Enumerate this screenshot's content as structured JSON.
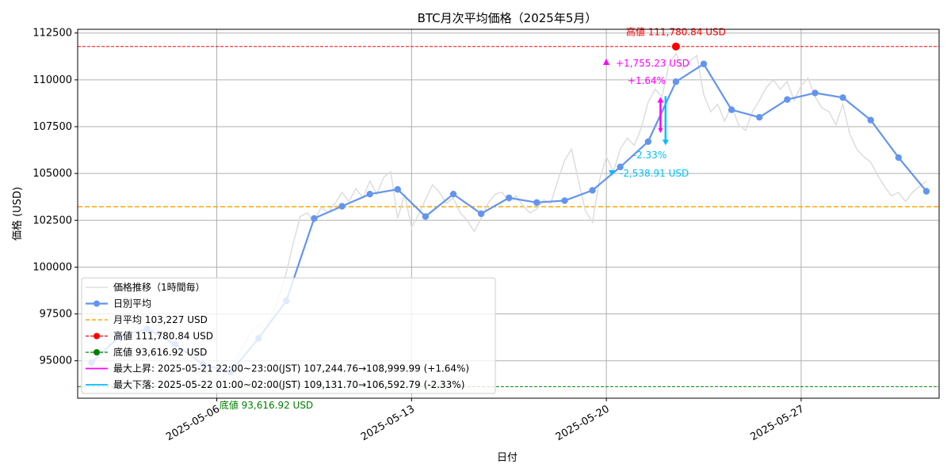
{
  "chart_data": {
    "type": "line",
    "title": "BTC月次平均価格（2025年5月）",
    "xlabel": "日付",
    "ylabel": "価格 (USD)",
    "x_range": [
      "2025-05-01T00:00",
      "2025-05-31T23:00"
    ],
    "ylim": [
      93000,
      112700
    ],
    "yticks": [
      95000,
      97500,
      100000,
      102500,
      105000,
      107500,
      110000,
      112500
    ],
    "xticks": [
      "2025-05-06",
      "2025-05-13",
      "2025-05-20",
      "2025-05-27"
    ],
    "grid": true,
    "legend_position": "lower-left",
    "colors": {
      "hourly": "#dddddd",
      "daily": "#6495ed",
      "mean": "#ffa500",
      "high": "#ff0000",
      "low": "#008000",
      "max_rise": "#ff00ff",
      "max_fall": "#00bfff"
    },
    "series": [
      {
        "name": "価格推移（1時間毎）",
        "kind": "hourly",
        "points": [
          [
            "2025-05-02T12:00",
            94900
          ],
          [
            "2025-05-02T18:00",
            95800
          ],
          [
            "2025-05-03T00:00",
            96300
          ],
          [
            "2025-05-03T06:00",
            96500
          ],
          [
            "2025-05-03T12:00",
            96100
          ],
          [
            "2025-05-03T18:00",
            96800
          ],
          [
            "2025-05-04T00:00",
            96400
          ],
          [
            "2025-05-04T06:00",
            96000
          ],
          [
            "2025-05-04T12:00",
            95800
          ],
          [
            "2025-05-04T18:00",
            95300
          ],
          [
            "2025-05-05T00:00",
            94700
          ],
          [
            "2025-05-05T06:00",
            94300
          ],
          [
            "2025-05-05T12:00",
            94500
          ],
          [
            "2025-05-05T18:00",
            94100
          ],
          [
            "2025-05-06T00:00",
            93900
          ],
          [
            "2025-05-06T06:00",
            94200
          ],
          [
            "2025-05-06T12:00",
            94800
          ],
          [
            "2025-05-06T18:00",
            95200
          ],
          [
            "2025-05-07T00:00",
            95900
          ],
          [
            "2025-05-07T06:00",
            96600
          ],
          [
            "2025-05-07T12:00",
            96900
          ],
          [
            "2025-05-07T18:00",
            96700
          ],
          [
            "2025-05-08T00:00",
            97400
          ],
          [
            "2025-05-08T06:00",
            98500
          ],
          [
            "2025-05-08T12:00",
            99700
          ],
          [
            "2025-05-08T18:00",
            101300
          ],
          [
            "2025-05-09T00:00",
            102700
          ],
          [
            "2025-05-09T06:00",
            102900
          ],
          [
            "2025-05-09T12:00",
            102400
          ],
          [
            "2025-05-09T18:00",
            103200
          ],
          [
            "2025-05-10T00:00",
            102900
          ],
          [
            "2025-05-10T06:00",
            103400
          ],
          [
            "2025-05-10T12:00",
            104000
          ],
          [
            "2025-05-10T18:00",
            103500
          ],
          [
            "2025-05-11T00:00",
            104200
          ],
          [
            "2025-05-11T06:00",
            103700
          ],
          [
            "2025-05-11T12:00",
            104600
          ],
          [
            "2025-05-11T18:00",
            103900
          ],
          [
            "2025-05-12T00:00",
            104800
          ],
          [
            "2025-05-12T06:00",
            105100
          ],
          [
            "2025-05-12T12:00",
            102600
          ],
          [
            "2025-05-12T18:00",
            103900
          ],
          [
            "2025-05-13T00:00",
            102100
          ],
          [
            "2025-05-13T06:00",
            102800
          ],
          [
            "2025-05-13T12:00",
            103600
          ],
          [
            "2025-05-13T18:00",
            104400
          ],
          [
            "2025-05-14T00:00",
            104000
          ],
          [
            "2025-05-14T06:00",
            103400
          ],
          [
            "2025-05-14T12:00",
            103700
          ],
          [
            "2025-05-14T18:00",
            102900
          ],
          [
            "2025-05-15T00:00",
            102500
          ],
          [
            "2025-05-15T06:00",
            101900
          ],
          [
            "2025-05-15T12:00",
            102600
          ],
          [
            "2025-05-15T18:00",
            103400
          ],
          [
            "2025-05-16T00:00",
            103900
          ],
          [
            "2025-05-16T06:00",
            104000
          ],
          [
            "2025-05-16T12:00",
            103500
          ],
          [
            "2025-05-16T18:00",
            103800
          ],
          [
            "2025-05-17T00:00",
            103300
          ],
          [
            "2025-05-17T06:00",
            102900
          ],
          [
            "2025-05-17T12:00",
            103100
          ],
          [
            "2025-05-17T18:00",
            103600
          ],
          [
            "2025-05-18T00:00",
            103400
          ],
          [
            "2025-05-18T06:00",
            104600
          ],
          [
            "2025-05-18T12:00",
            105700
          ],
          [
            "2025-05-18T18:00",
            106300
          ],
          [
            "2025-05-19T00:00",
            104600
          ],
          [
            "2025-05-19T06:00",
            103000
          ],
          [
            "2025-05-19T12:00",
            102400
          ],
          [
            "2025-05-19T18:00",
            104600
          ],
          [
            "2025-05-20T00:00",
            105900
          ],
          [
            "2025-05-20T06:00",
            105100
          ],
          [
            "2025-05-20T12:00",
            106300
          ],
          [
            "2025-05-20T18:00",
            106900
          ],
          [
            "2025-05-21T00:00",
            106500
          ],
          [
            "2025-05-21T06:00",
            107400
          ],
          [
            "2025-05-21T12:00",
            108800
          ],
          [
            "2025-05-21T18:00",
            109500
          ],
          [
            "2025-05-22T00:00",
            109100
          ],
          [
            "2025-05-22T06:00",
            110800
          ],
          [
            "2025-05-22T12:00",
            111400
          ],
          [
            "2025-05-22T18:00",
            110600
          ],
          [
            "2025-05-23T00:00",
            111000
          ],
          [
            "2025-05-23T06:00",
            111300
          ],
          [
            "2025-05-23T12:00",
            109200
          ],
          [
            "2025-05-23T18:00",
            108300
          ],
          [
            "2025-05-24T00:00",
            108700
          ],
          [
            "2025-05-24T06:00",
            107800
          ],
          [
            "2025-05-24T12:00",
            108600
          ],
          [
            "2025-05-24T18:00",
            107600
          ],
          [
            "2025-05-25T00:00",
            107300
          ],
          [
            "2025-05-25T06:00",
            108300
          ],
          [
            "2025-05-25T12:00",
            108900
          ],
          [
            "2025-05-25T18:00",
            109600
          ],
          [
            "2025-05-26T00:00",
            110000
          ],
          [
            "2025-05-26T06:00",
            109500
          ],
          [
            "2025-05-26T12:00",
            109900
          ],
          [
            "2025-05-26T18:00",
            108900
          ],
          [
            "2025-05-27T00:00",
            109700
          ],
          [
            "2025-05-27T06:00",
            110100
          ],
          [
            "2025-05-27T12:00",
            109100
          ],
          [
            "2025-05-27T18:00",
            108500
          ],
          [
            "2025-05-28T00:00",
            108300
          ],
          [
            "2025-05-28T06:00",
            107600
          ],
          [
            "2025-05-28T12:00",
            108700
          ],
          [
            "2025-05-28T18:00",
            107100
          ],
          [
            "2025-05-29T00:00",
            106300
          ],
          [
            "2025-05-29T06:00",
            105900
          ],
          [
            "2025-05-29T12:00",
            105600
          ],
          [
            "2025-05-29T18:00",
            104900
          ],
          [
            "2025-05-30T00:00",
            104300
          ],
          [
            "2025-05-30T06:00",
            103800
          ],
          [
            "2025-05-30T12:00",
            104000
          ],
          [
            "2025-05-30T18:00",
            103500
          ],
          [
            "2025-05-31T00:00",
            104000
          ],
          [
            "2025-05-31T12:00",
            104600
          ]
        ]
      },
      {
        "name": "日別平均",
        "kind": "daily",
        "points": [
          [
            "2025-05-01T12:00",
            94900
          ],
          [
            "2025-05-02T12:00",
            96300
          ],
          [
            "2025-05-03T12:00",
            96700
          ],
          [
            "2025-05-04T12:00",
            95900
          ],
          [
            "2025-05-05T12:00",
            94800
          ],
          [
            "2025-05-06T12:00",
            94400
          ],
          [
            "2025-05-07T12:00",
            96200
          ],
          [
            "2025-05-08T12:00",
            98200
          ],
          [
            "2025-05-09T12:00",
            102600
          ],
          [
            "2025-05-10T12:00",
            103250
          ],
          [
            "2025-05-11T12:00",
            103900
          ],
          [
            "2025-05-12T12:00",
            104150
          ],
          [
            "2025-05-13T12:00",
            102700
          ],
          [
            "2025-05-14T12:00",
            103900
          ],
          [
            "2025-05-15T12:00",
            102850
          ],
          [
            "2025-05-16T12:00",
            103700
          ],
          [
            "2025-05-17T12:00",
            103450
          ],
          [
            "2025-05-18T12:00",
            103550
          ],
          [
            "2025-05-19T12:00",
            104100
          ],
          [
            "2025-05-20T12:00",
            105350
          ],
          [
            "2025-05-21T12:00",
            106700
          ],
          [
            "2025-05-22T12:00",
            109900
          ],
          [
            "2025-05-23T12:00",
            110850
          ],
          [
            "2025-05-24T12:00",
            108400
          ],
          [
            "2025-05-25T12:00",
            108000
          ],
          [
            "2025-05-26T12:00",
            108950
          ],
          [
            "2025-05-27T12:00",
            109300
          ],
          [
            "2025-05-28T12:00",
            109050
          ],
          [
            "2025-05-29T12:00",
            107850
          ],
          [
            "2025-05-30T12:00",
            105850
          ],
          [
            "2025-05-31T12:00",
            104050
          ]
        ]
      }
    ],
    "reference_lines": {
      "mean": {
        "value": 103227,
        "legend": "月平均 103,227 USD"
      },
      "high": {
        "value": 111780.84,
        "time": "2025-05-22T12:00",
        "legend": "高値 111,780.84 USD",
        "label": "高値 111,780.84 USD"
      },
      "low": {
        "value": 93616.92,
        "legend": "底値 93,616.92 USD",
        "label": "底値 93,616.92 USD"
      }
    },
    "max_rise": {
      "legend": "最大上昇: 2025-05-21 22:00~23:00(JST) 107,244.76→108,999.99 (+1.64%)",
      "from": [
        "2025-05-21T22:00",
        107244.76
      ],
      "to": [
        "2025-05-21T23:00",
        108999.99
      ],
      "delta_label": "+1,755.23 USD",
      "pct_label": "+1.64%"
    },
    "max_fall": {
      "legend": "最大下落: 2025-05-22 01:00~02:00(JST) 109,131.70→106,592.79 (-2.33%)",
      "from": [
        "2025-05-22T01:00",
        109131.7
      ],
      "to": [
        "2025-05-22T02:00",
        106592.79
      ],
      "delta_label": "-2,538.91 USD",
      "pct_label": "-2.33%"
    }
  }
}
